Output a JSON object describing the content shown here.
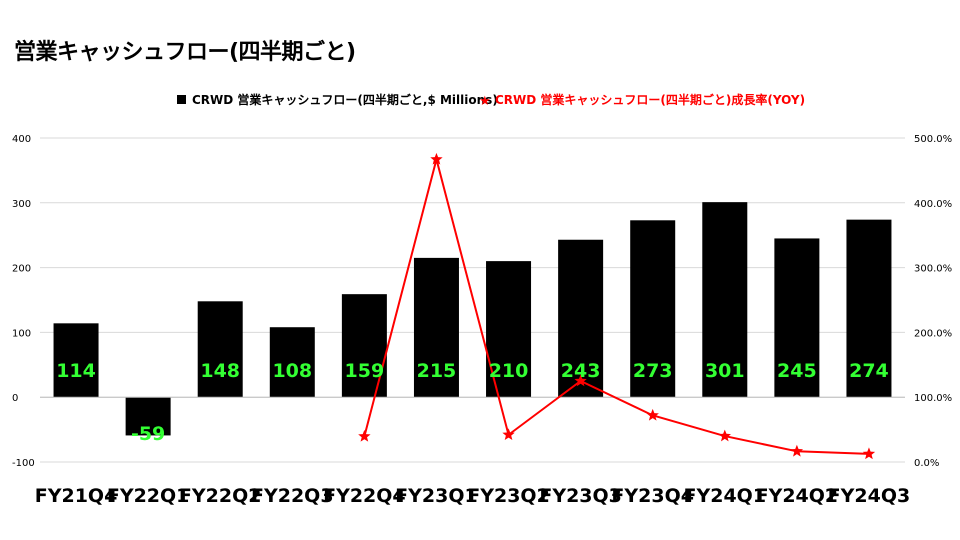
{
  "page": {
    "title": "営業キャッシュフロー(四半期ごと)"
  },
  "colors": {
    "bar": "#000000",
    "line": "#ff0000",
    "data_label": "#33ff33",
    "grid": "#d9d9d9"
  },
  "chart_data": {
    "type": "bar",
    "title": "",
    "categories": [
      "FY21Q4",
      "FY22Q1",
      "FY22Q2",
      "FY22Q3",
      "FY22Q4",
      "FY23Q1",
      "FY23Q2",
      "FY23Q3",
      "FY23Q4",
      "FY24Q1",
      "FY24Q2",
      "FY24Q3"
    ],
    "series": [
      {
        "name": "CRWD 営業キャッシュフロー(四半期ごと,$ Millions)",
        "type": "bar",
        "axis": "left",
        "values": [
          114,
          -59,
          148,
          108,
          159,
          215,
          210,
          243,
          273,
          301,
          245,
          274
        ],
        "data_labels": [
          "114",
          "-59",
          "148",
          "108",
          "159",
          "215",
          "210",
          "243",
          "273",
          "301",
          "245",
          "274"
        ]
      },
      {
        "name": "CRWD 営業キャッシュフロー(四半期ごと)成長率(YOY)",
        "type": "line",
        "axis": "right",
        "marker": "star",
        "values": [
          null,
          null,
          null,
          null,
          39.5,
          467.0,
          42.0,
          125.0,
          72.0,
          40.0,
          16.5,
          12.5
        ]
      }
    ],
    "y_left": {
      "ylim": [
        -100,
        400
      ],
      "ticks": [
        "400",
        "300",
        "200",
        "100",
        "0",
        "-100"
      ]
    },
    "y_right": {
      "ylim": [
        0,
        500
      ],
      "ticks": [
        "500.0%",
        "400.0%",
        "300.0%",
        "200.0%",
        "100.0%",
        "0.0%"
      ]
    },
    "grid": true,
    "legend": "top"
  }
}
